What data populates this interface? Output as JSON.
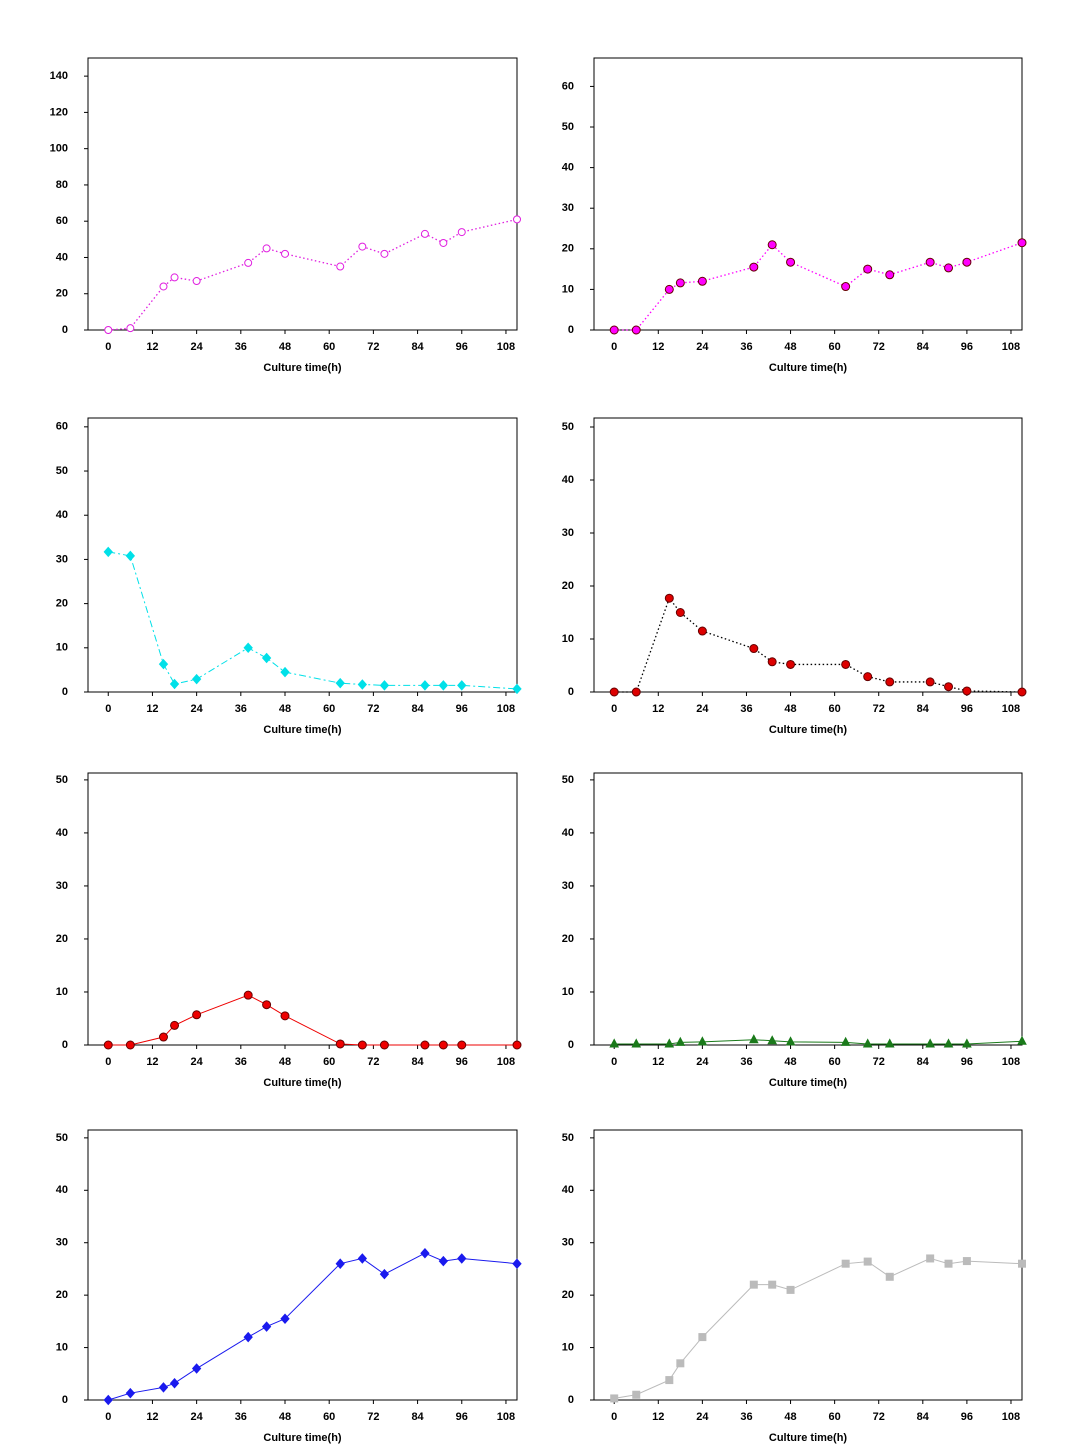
{
  "chart_data": [
    {
      "type": "line",
      "xlabel": "Culture time(h)",
      "x": [
        0,
        6,
        15,
        18,
        24,
        38,
        43,
        48,
        63,
        69,
        75,
        86,
        91,
        96,
        111
      ],
      "xlim": [
        -5.5,
        111
      ],
      "xticks": [
        0,
        12,
        24,
        36,
        48,
        60,
        72,
        84,
        96,
        108
      ],
      "ylim": [
        0,
        150
      ],
      "yticks": [
        0,
        20,
        40,
        60,
        80,
        100,
        120,
        140
      ],
      "marker": "circle-open",
      "linestyle": "dotted",
      "series": [
        {
          "color": "#e020e0",
          "values": [
            0,
            1,
            24,
            29,
            27,
            37,
            45,
            42,
            35,
            46,
            42,
            53,
            48,
            54,
            61
          ]
        }
      ]
    },
    {
      "type": "line",
      "xlabel": "Culture time(h)",
      "x": [
        0,
        6,
        15,
        18,
        24,
        38,
        43,
        48,
        63,
        69,
        75,
        86,
        91,
        96,
        111
      ],
      "xlim": [
        -5.5,
        111
      ],
      "xticks": [
        0,
        12,
        24,
        36,
        48,
        60,
        72,
        84,
        96,
        108
      ],
      "ylim": [
        0,
        67
      ],
      "yticks": [
        0,
        10,
        20,
        30,
        40,
        50,
        60
      ],
      "marker": "circle",
      "linestyle": "dotted",
      "series": [
        {
          "color": "#ff00ff",
          "values": [
            0,
            0,
            10,
            11.6,
            12,
            15.5,
            21,
            16.7,
            10.7,
            15,
            13.6,
            16.7,
            15.3,
            16.7,
            21.5
          ]
        }
      ]
    },
    {
      "type": "line",
      "xlabel": "Culture time(h)",
      "x": [
        0,
        6,
        15,
        18,
        24,
        38,
        43,
        48,
        63,
        69,
        75,
        86,
        91,
        96,
        111
      ],
      "xlim": [
        -5.5,
        111
      ],
      "xticks": [
        0,
        12,
        24,
        36,
        48,
        60,
        72,
        84,
        96,
        108
      ],
      "ylim": [
        0,
        62
      ],
      "yticks": [
        0,
        10,
        20,
        30,
        40,
        50,
        60
      ],
      "marker": "diamond",
      "linestyle": "dashdot",
      "series": [
        {
          "color": "#00e0e8",
          "values": [
            31.7,
            30.8,
            6.3,
            1.8,
            2.9,
            10,
            7.7,
            4.5,
            2,
            1.7,
            1.5,
            1.5,
            1.5,
            1.5,
            0.7
          ]
        }
      ]
    },
    {
      "type": "line",
      "xlabel": "Culture time(h)",
      "x": [
        0,
        6,
        15,
        18,
        24,
        38,
        43,
        48,
        63,
        69,
        75,
        86,
        91,
        96,
        111
      ],
      "xlim": [
        -5.5,
        111
      ],
      "xticks": [
        0,
        12,
        24,
        36,
        48,
        60,
        72,
        84,
        96,
        108
      ],
      "ylim": [
        0,
        51.7
      ],
      "yticks": [
        0,
        10,
        20,
        30,
        40,
        50
      ],
      "marker": "circle",
      "linestyle": "dotted",
      "line_color": "#000000",
      "series": [
        {
          "color": "#dd0000",
          "values": [
            0,
            0,
            17.7,
            15,
            11.5,
            8.2,
            5.7,
            5.2,
            5.2,
            2.9,
            1.9,
            1.9,
            1,
            0.2,
            0
          ]
        }
      ]
    },
    {
      "type": "line",
      "xlabel": "Culture time(h)",
      "x": [
        0,
        6,
        15,
        18,
        24,
        38,
        43,
        48,
        63,
        69,
        75,
        86,
        91,
        96,
        111
      ],
      "xlim": [
        -5.5,
        111
      ],
      "xticks": [
        0,
        12,
        24,
        36,
        48,
        60,
        72,
        84,
        96,
        108
      ],
      "ylim": [
        0,
        51.3
      ],
      "yticks": [
        0,
        10,
        20,
        30,
        40,
        50
      ],
      "marker": "circle",
      "linestyle": "solid",
      "series": [
        {
          "color": "#ee0000",
          "values": [
            0,
            0,
            1.5,
            3.7,
            5.7,
            9.4,
            7.6,
            5.5,
            0.2,
            0,
            0,
            0,
            0,
            0,
            0
          ]
        }
      ]
    },
    {
      "type": "line",
      "xlabel": "Culture time(h)",
      "x": [
        0,
        6,
        15,
        18,
        24,
        38,
        43,
        48,
        63,
        69,
        75,
        86,
        91,
        96,
        111
      ],
      "xlim": [
        -5.5,
        111
      ],
      "xticks": [
        0,
        12,
        24,
        36,
        48,
        60,
        72,
        84,
        96,
        108
      ],
      "ylim": [
        0,
        51.3
      ],
      "yticks": [
        0,
        10,
        20,
        30,
        40,
        50
      ],
      "marker": "triangle",
      "linestyle": "solid",
      "series": [
        {
          "color": "#1a7a1a",
          "values": [
            0.2,
            0.2,
            0.2,
            0.5,
            0.6,
            1,
            0.8,
            0.6,
            0.5,
            0.2,
            0.2,
            0.2,
            0.2,
            0.2,
            0.7
          ]
        }
      ]
    },
    {
      "type": "line",
      "xlabel": "Culture time(h)",
      "x": [
        0,
        6,
        15,
        18,
        24,
        38,
        43,
        48,
        63,
        69,
        75,
        86,
        91,
        96,
        111
      ],
      "xlim": [
        -5.5,
        111
      ],
      "xticks": [
        0,
        12,
        24,
        36,
        48,
        60,
        72,
        84,
        96,
        108
      ],
      "ylim": [
        0,
        51.5
      ],
      "yticks": [
        0,
        10,
        20,
        30,
        40,
        50
      ],
      "marker": "diamond",
      "linestyle": "solid",
      "series": [
        {
          "color": "#1a1aee",
          "values": [
            0,
            1.3,
            2.4,
            3.2,
            6,
            12,
            14,
            15.5,
            26,
            27,
            24,
            28,
            26.5,
            27,
            26
          ]
        }
      ]
    },
    {
      "type": "line",
      "xlabel": "Culture time(h)",
      "x": [
        0,
        6,
        15,
        18,
        24,
        38,
        43,
        48,
        63,
        69,
        75,
        86,
        91,
        96,
        111
      ],
      "xlim": [
        -5.5,
        111
      ],
      "xticks": [
        0,
        12,
        24,
        36,
        48,
        60,
        72,
        84,
        96,
        108
      ],
      "ylim": [
        0,
        51.5
      ],
      "yticks": [
        0,
        10,
        20,
        30,
        40,
        50
      ],
      "marker": "square",
      "linestyle": "solid",
      "series": [
        {
          "color": "#bbbbbb",
          "values": [
            0.3,
            1,
            3.8,
            7,
            12,
            22,
            22,
            21,
            26,
            26.4,
            23.5,
            27,
            26,
            26.5,
            26
          ]
        }
      ]
    }
  ]
}
